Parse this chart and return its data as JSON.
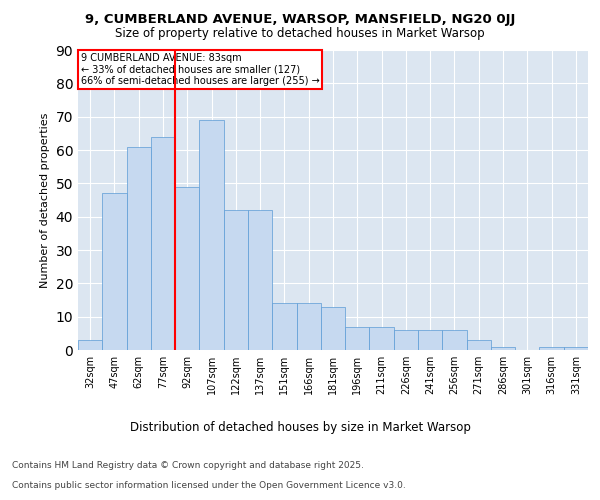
{
  "title_line1": "9, CUMBERLAND AVENUE, WARSOP, MANSFIELD, NG20 0JJ",
  "title_line2": "Size of property relative to detached houses in Market Warsop",
  "xlabel": "Distribution of detached houses by size in Market Warsop",
  "ylabel": "Number of detached properties",
  "categories": [
    "32sqm",
    "47sqm",
    "62sqm",
    "77sqm",
    "92sqm",
    "107sqm",
    "122sqm",
    "137sqm",
    "151sqm",
    "166sqm",
    "181sqm",
    "196sqm",
    "211sqm",
    "226sqm",
    "241sqm",
    "256sqm",
    "271sqm",
    "286sqm",
    "301sqm",
    "316sqm",
    "331sqm"
  ],
  "values": [
    3,
    47,
    61,
    64,
    49,
    69,
    42,
    42,
    14,
    14,
    13,
    7,
    7,
    6,
    6,
    6,
    3,
    1,
    0,
    1,
    1
  ],
  "bar_color": "#c6d9f0",
  "bar_edge_color": "#5b9bd5",
  "annotation_title": "9 CUMBERLAND AVENUE: 83sqm",
  "annotation_line1": "← 33% of detached houses are smaller (127)",
  "annotation_line2": "66% of semi-detached houses are larger (255) →",
  "ylim": [
    0,
    90
  ],
  "yticks": [
    0,
    10,
    20,
    30,
    40,
    50,
    60,
    70,
    80,
    90
  ],
  "plot_bg_color": "#dce6f1",
  "footer_line1": "Contains HM Land Registry data © Crown copyright and database right 2025.",
  "footer_line2": "Contains public sector information licensed under the Open Government Licence v3.0."
}
